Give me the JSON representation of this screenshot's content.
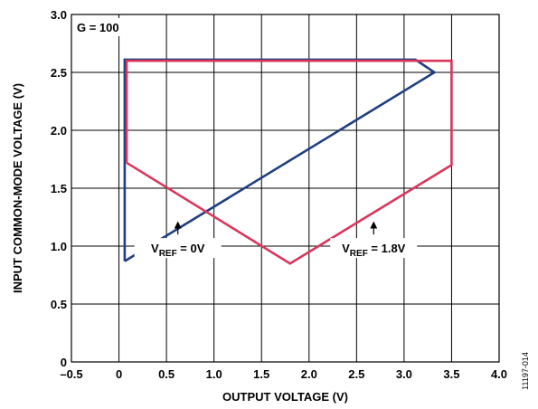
{
  "chart_data": {
    "type": "line",
    "title": "",
    "xlabel": "OUTPUT VOLTAGE (V)",
    "ylabel": "INPUT COMMON-MODE VOLTAGE (V)",
    "xlim": [
      -0.5,
      4.0
    ],
    "ylim": [
      0,
      3.0
    ],
    "xticks": [
      -0.5,
      0,
      0.5,
      1.0,
      1.5,
      2.0,
      2.5,
      3.0,
      3.5,
      4.0
    ],
    "xtick_labels": [
      "–0.5",
      "0",
      "0.5",
      "1.0",
      "1.5",
      "2.0",
      "2.5",
      "3.0",
      "3.5",
      "4.0"
    ],
    "yticks": [
      0,
      0.5,
      1.0,
      1.5,
      2.0,
      2.5,
      3.0
    ],
    "ytick_labels": [
      "0",
      "0.5",
      "1.0",
      "1.5",
      "2.0",
      "2.5",
      "3.0"
    ],
    "grid": true,
    "series": [
      {
        "color": "#1f3f7f",
        "points": [
          [
            0.06,
            0.87
          ],
          [
            0.06,
            2.61
          ],
          [
            3.12,
            2.61
          ],
          [
            3.32,
            2.5
          ],
          [
            0.06,
            0.87
          ]
        ]
      },
      {
        "color": "#d9365a",
        "points": [
          [
            0.08,
            1.72
          ],
          [
            0.08,
            2.6
          ],
          [
            3.5,
            2.6
          ],
          [
            3.5,
            1.7
          ],
          [
            1.8,
            0.85
          ],
          [
            0.08,
            1.72
          ]
        ]
      }
    ],
    "annotations": [
      {
        "id": "gain",
        "text": "G = 100"
      },
      {
        "id": "vref0",
        "main": "V",
        "sub": "REF",
        "rest": " = 0V",
        "at": [
          0.62,
          0.96
        ],
        "arrow_to": [
          0.62,
          1.23
        ]
      },
      {
        "id": "vref18",
        "main": "V",
        "sub": "REF",
        "rest": " = 1.8V",
        "at": [
          2.68,
          0.96
        ],
        "arrow_to": [
          2.68,
          1.23
        ]
      }
    ],
    "figure_id": "11197-014"
  },
  "colors": {
    "series_0": "#1f3f7f",
    "series_1": "#d9365a",
    "grid": "#000000"
  }
}
